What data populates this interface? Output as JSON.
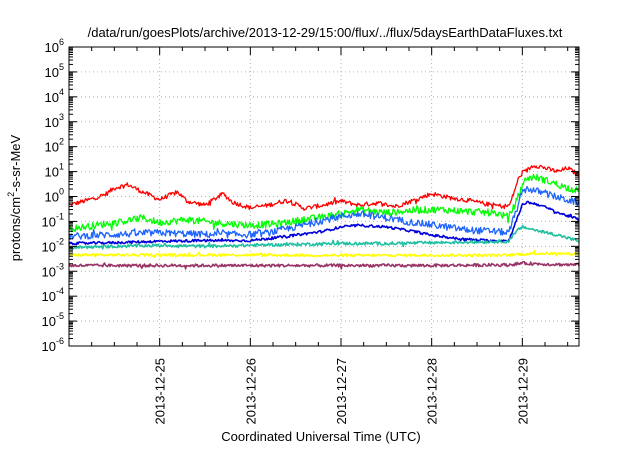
{
  "chart_data": {
    "type": "line",
    "title": "/data/run/goesPlots/archive/2013-12-29/15:00/flux/../flux/5daysEarthDataFluxes.txt",
    "xlabel": "Coordinated Universal Time (UTC)",
    "ylabel": "protons/cm2-s-sr-MeV",
    "ylabel_parts": {
      "prefix": "protons/cm",
      "sup": "2",
      "suffix": "-s-sr-MeV"
    },
    "yscale": "log",
    "ylim": [
      1e-06,
      1000000.0
    ],
    "yticks": [
      {
        "value": 1e-06,
        "base": "10",
        "exp": "-6"
      },
      {
        "value": 1e-05,
        "base": "10",
        "exp": "-5"
      },
      {
        "value": 0.0001,
        "base": "10",
        "exp": "-4"
      },
      {
        "value": 0.001,
        "base": "10",
        "exp": "-3"
      },
      {
        "value": 0.01,
        "base": "10",
        "exp": "-2"
      },
      {
        "value": 0.1,
        "base": "10",
        "exp": "-1"
      },
      {
        "value": 1,
        "base": "10",
        "exp": "0"
      },
      {
        "value": 10,
        "base": "10",
        "exp": "1"
      },
      {
        "value": 100,
        "base": "10",
        "exp": "2"
      },
      {
        "value": 1000,
        "base": "10",
        "exp": "3"
      },
      {
        "value": 10000,
        "base": "10",
        "exp": "4"
      },
      {
        "value": 100000,
        "base": "10",
        "exp": "5"
      },
      {
        "value": 1000000,
        "base": "10",
        "exp": "6"
      }
    ],
    "xlim": [
      "2013-12-24 00:00",
      "2013-12-29 15:00"
    ],
    "xticks": [
      {
        "label": "2013-12-25",
        "day": 1
      },
      {
        "label": "2013-12-26",
        "day": 2
      },
      {
        "label": "2013-12-27",
        "day": 3
      },
      {
        "label": "2013-12-28",
        "day": 4
      },
      {
        "label": "2013-12-29",
        "day": 5
      }
    ],
    "x_range_days": [
      0,
      5.625
    ],
    "grid": true,
    "series": [
      {
        "color": "#ff0000",
        "noise": 0.09,
        "points": [
          [
            0,
            0.45
          ],
          [
            0.2,
            0.7
          ],
          [
            0.4,
            1.2
          ],
          [
            0.5,
            2.2
          ],
          [
            0.65,
            3.0
          ],
          [
            0.8,
            1.6
          ],
          [
            1.0,
            0.75
          ],
          [
            1.1,
            1.1
          ],
          [
            1.2,
            1.5
          ],
          [
            1.3,
            0.65
          ],
          [
            1.5,
            0.45
          ],
          [
            1.7,
            1.3
          ],
          [
            1.8,
            0.6
          ],
          [
            2.0,
            0.35
          ],
          [
            2.2,
            0.45
          ],
          [
            2.4,
            0.7
          ],
          [
            2.6,
            0.33
          ],
          [
            2.8,
            0.45
          ],
          [
            3.0,
            0.65
          ],
          [
            3.2,
            0.45
          ],
          [
            3.4,
            0.55
          ],
          [
            3.6,
            0.4
          ],
          [
            3.8,
            0.7
          ],
          [
            4.0,
            1.3
          ],
          [
            4.2,
            0.9
          ],
          [
            4.4,
            0.7
          ],
          [
            4.6,
            0.5
          ],
          [
            4.8,
            0.4
          ],
          [
            4.86,
            0.45
          ],
          [
            4.9,
            1.2
          ],
          [
            4.95,
            4.5
          ],
          [
            5.0,
            9
          ],
          [
            5.05,
            11
          ],
          [
            5.12,
            18
          ],
          [
            5.2,
            16
          ],
          [
            5.3,
            12
          ],
          [
            5.4,
            10
          ],
          [
            5.5,
            14
          ],
          [
            5.625,
            7
          ]
        ]
      },
      {
        "color": "#00ff00",
        "noise": 0.14,
        "points": [
          [
            0,
            0.05
          ],
          [
            0.3,
            0.07
          ],
          [
            0.6,
            0.1
          ],
          [
            0.8,
            0.14
          ],
          [
            1.0,
            0.09
          ],
          [
            1.3,
            0.12
          ],
          [
            1.6,
            0.09
          ],
          [
            2.0,
            0.07
          ],
          [
            2.3,
            0.08
          ],
          [
            2.6,
            0.12
          ],
          [
            2.8,
            0.15
          ],
          [
            3.0,
            0.2
          ],
          [
            3.2,
            0.3
          ],
          [
            3.5,
            0.22
          ],
          [
            3.8,
            0.28
          ],
          [
            4.1,
            0.3
          ],
          [
            4.4,
            0.25
          ],
          [
            4.7,
            0.22
          ],
          [
            4.85,
            0.15
          ],
          [
            4.93,
            0.6
          ],
          [
            5.0,
            3.0
          ],
          [
            5.05,
            5.5
          ],
          [
            5.15,
            6
          ],
          [
            5.3,
            4
          ],
          [
            5.45,
            2.5
          ],
          [
            5.625,
            1.7
          ]
        ]
      },
      {
        "color": "#1e64ff",
        "noise": 0.14,
        "points": [
          [
            0,
            0.025
          ],
          [
            0.5,
            0.03
          ],
          [
            1.0,
            0.035
          ],
          [
            1.5,
            0.03
          ],
          [
            2.0,
            0.03
          ],
          [
            2.2,
            0.035
          ],
          [
            2.5,
            0.06
          ],
          [
            2.8,
            0.11
          ],
          [
            3.0,
            0.16
          ],
          [
            3.2,
            0.2
          ],
          [
            3.5,
            0.14
          ],
          [
            3.8,
            0.09
          ],
          [
            4.1,
            0.065
          ],
          [
            4.4,
            0.045
          ],
          [
            4.7,
            0.04
          ],
          [
            4.85,
            0.035
          ],
          [
            4.93,
            0.25
          ],
          [
            5.0,
            1.5
          ],
          [
            5.05,
            2.1
          ],
          [
            5.2,
            1.5
          ],
          [
            5.4,
            0.9
          ],
          [
            5.625,
            0.55
          ]
        ]
      },
      {
        "color": "#0000dd",
        "noise": 0.05,
        "points": [
          [
            0,
            0.013
          ],
          [
            0.5,
            0.014
          ],
          [
            1.0,
            0.016
          ],
          [
            1.5,
            0.017
          ],
          [
            2.0,
            0.017
          ],
          [
            2.4,
            0.025
          ],
          [
            2.8,
            0.04
          ],
          [
            3.0,
            0.06
          ],
          [
            3.2,
            0.07
          ],
          [
            3.5,
            0.06
          ],
          [
            3.8,
            0.04
          ],
          [
            4.0,
            0.028
          ],
          [
            4.3,
            0.02
          ],
          [
            4.6,
            0.017
          ],
          [
            4.85,
            0.017
          ],
          [
            4.93,
            0.1
          ],
          [
            5.0,
            0.45
          ],
          [
            5.05,
            0.6
          ],
          [
            5.2,
            0.45
          ],
          [
            5.4,
            0.22
          ],
          [
            5.625,
            0.12
          ]
        ]
      },
      {
        "color": "#20c0a0",
        "noise": 0.06,
        "points": [
          [
            0,
            0.009
          ],
          [
            0.5,
            0.01
          ],
          [
            1.0,
            0.011
          ],
          [
            1.5,
            0.01
          ],
          [
            2.0,
            0.011
          ],
          [
            2.5,
            0.012
          ],
          [
            3.0,
            0.013
          ],
          [
            3.5,
            0.013
          ],
          [
            4.0,
            0.014
          ],
          [
            4.5,
            0.015
          ],
          [
            4.85,
            0.016
          ],
          [
            4.95,
            0.045
          ],
          [
            5.0,
            0.06
          ],
          [
            5.2,
            0.04
          ],
          [
            5.4,
            0.028
          ],
          [
            5.625,
            0.016
          ]
        ]
      },
      {
        "color": "#ffff00",
        "noise": 0.05,
        "points": [
          [
            0,
            0.0045
          ],
          [
            1.0,
            0.0045
          ],
          [
            2.0,
            0.0045
          ],
          [
            3.0,
            0.0043
          ],
          [
            4.0,
            0.0044
          ],
          [
            4.85,
            0.0044
          ],
          [
            4.95,
            0.0048
          ],
          [
            5.2,
            0.0052
          ],
          [
            5.625,
            0.005
          ]
        ]
      },
      {
        "color": "#993366",
        "noise": 0.06,
        "points": [
          [
            0,
            0.0017
          ],
          [
            1.0,
            0.0017
          ],
          [
            2.0,
            0.0017
          ],
          [
            3.0,
            0.0017
          ],
          [
            4.0,
            0.0017
          ],
          [
            4.85,
            0.0018
          ],
          [
            5.0,
            0.0021
          ],
          [
            5.3,
            0.0019
          ],
          [
            5.625,
            0.0018
          ]
        ]
      }
    ]
  }
}
